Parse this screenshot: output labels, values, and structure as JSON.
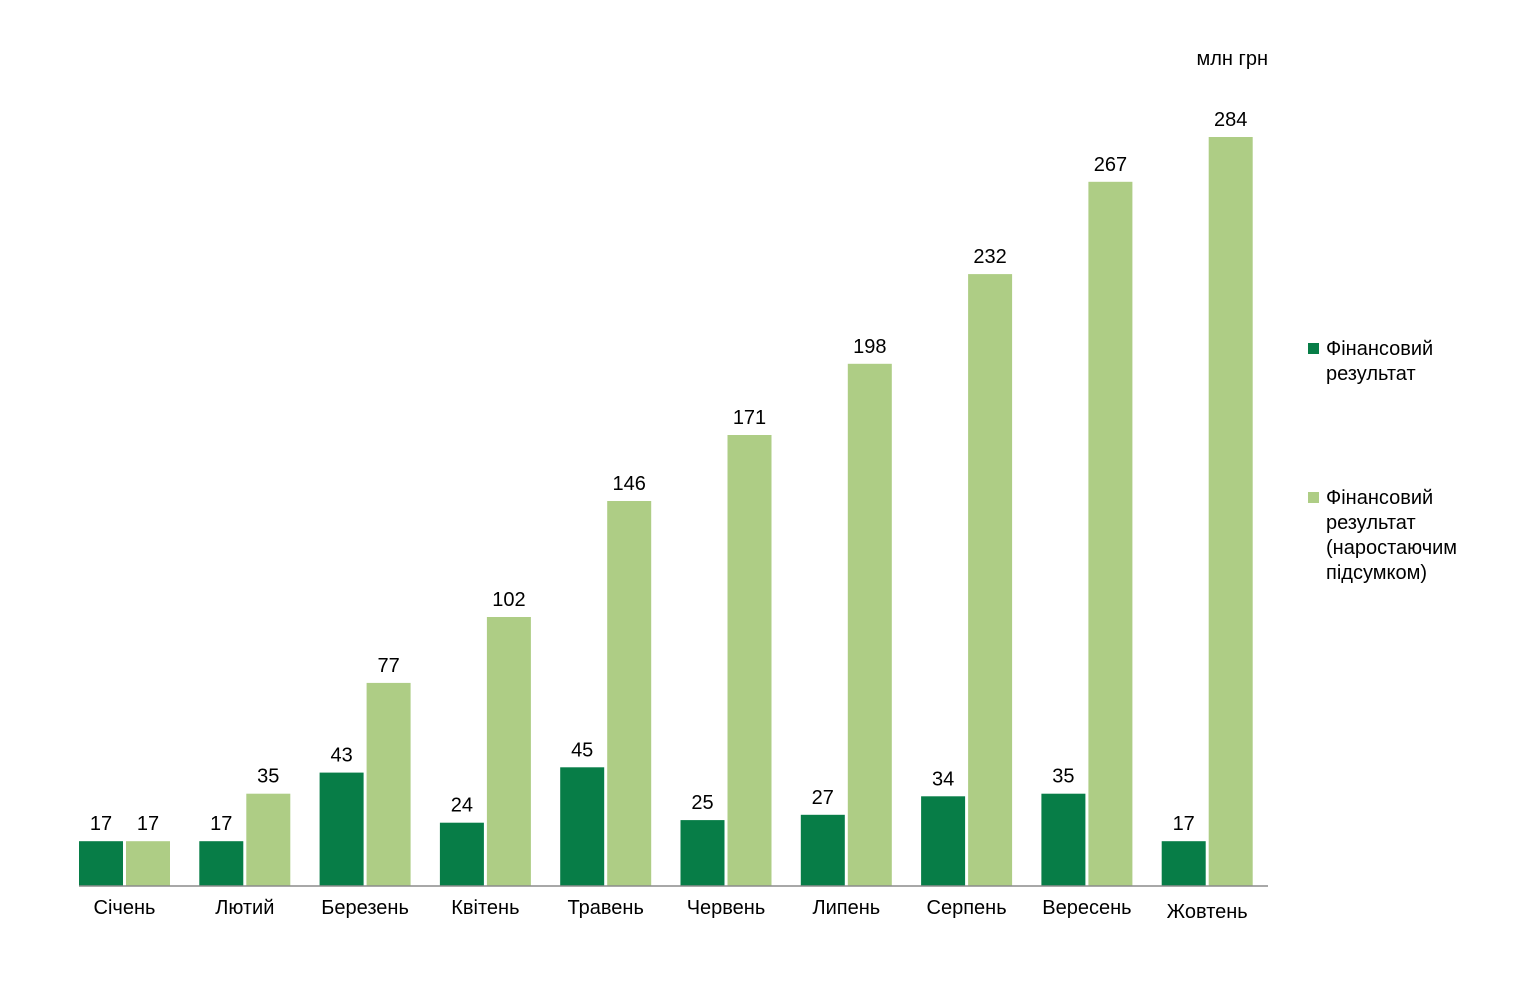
{
  "chart_data": {
    "type": "bar",
    "unit_label": "млн грн",
    "categories": [
      "Січень",
      "Лютий",
      "Березень",
      "Квітень",
      "Травень",
      "Червень",
      "Липень",
      "Серпень",
      "Вересень",
      "Жовтень"
    ],
    "series": [
      {
        "name": "Фінансовий результат",
        "color": "#077d47",
        "values": [
          17,
          17,
          43,
          24,
          45,
          25,
          27,
          34,
          35,
          17
        ]
      },
      {
        "name": "Фінансовий результат (наростаючим підсумком)",
        "color": "#aecd85",
        "values": [
          17,
          35,
          77,
          102,
          146,
          171,
          198,
          232,
          267,
          284
        ]
      }
    ],
    "ylim": [
      0,
      284
    ],
    "grid": false,
    "legend_position": "right"
  }
}
